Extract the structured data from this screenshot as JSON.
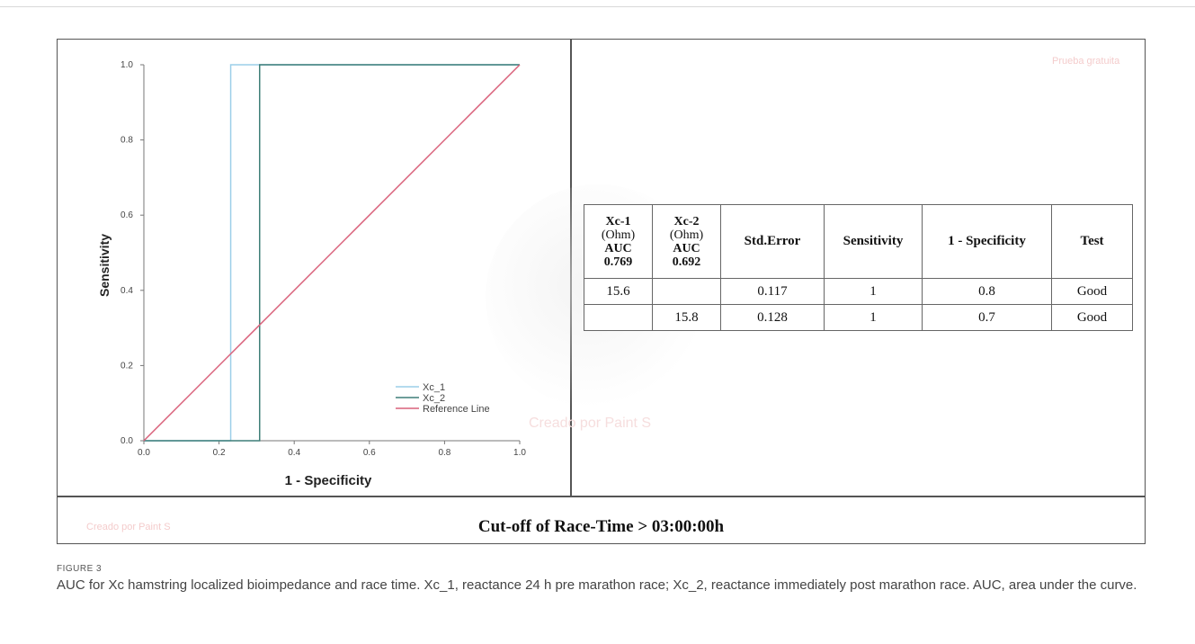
{
  "chart_data": [
    {
      "type": "line",
      "xlabel": "1 - Specificity",
      "ylabel": "Sensitivity",
      "xlim": [
        0.0,
        1.0
      ],
      "ylim": [
        0.0,
        1.0
      ],
      "x_ticks": [
        "0.0",
        "0.2",
        "0.4",
        "0.6",
        "0.8",
        "1.0"
      ],
      "y_ticks": [
        "0.0",
        "0.2",
        "0.4",
        "0.6",
        "0.8",
        "1.0"
      ],
      "grid": false,
      "legend_position": "bottom-right",
      "series": [
        {
          "name": "Xc_1",
          "color": "#9ccfe9",
          "points": [
            [
              0.0,
              0.0
            ],
            [
              0.231,
              0.0
            ],
            [
              0.231,
              1.0
            ],
            [
              1.0,
              1.0
            ]
          ]
        },
        {
          "name": "Xc_2",
          "color": "#3f7f78",
          "points": [
            [
              0.0,
              0.0
            ],
            [
              0.308,
              0.0
            ],
            [
              0.308,
              1.0
            ],
            [
              1.0,
              1.0
            ]
          ]
        },
        {
          "name": "Reference Line",
          "color": "#d9607a",
          "points": [
            [
              0.0,
              0.0
            ],
            [
              1.0,
              1.0
            ]
          ]
        }
      ]
    },
    {
      "type": "table",
      "headers": [
        {
          "name": "Xc-1",
          "unit": "(Ohm)",
          "auc_label": "AUC",
          "auc_value": "0.769"
        },
        {
          "name": "Xc-2",
          "unit": "(Ohm)",
          "auc_label": "AUC",
          "auc_value": "0.692"
        },
        {
          "name": "Std.Error"
        },
        {
          "name": "Sensitivity"
        },
        {
          "name": "1 - Specificity"
        },
        {
          "name": "Test"
        }
      ],
      "rows": [
        [
          "15.6",
          "",
          "0.117",
          "1",
          "0.8",
          "Good"
        ],
        [
          "",
          "15.8",
          "0.128",
          "1",
          "0.7",
          "Good"
        ]
      ]
    }
  ],
  "panel_title": "Cut-off of Race-Time > 03:00:00h",
  "watermarks": {
    "top_right": "Prueba gratuita",
    "center": "Creado por Paint S",
    "bottom_left": "Creado por Paint S"
  },
  "caption": {
    "label": "FIGURE 3",
    "text": "AUC for Xc hamstring localized bioimpedance and race time. Xc_1, reactance 24 h pre marathon race; Xc_2, reactance immediately post marathon race. AUC, area under the curve."
  }
}
